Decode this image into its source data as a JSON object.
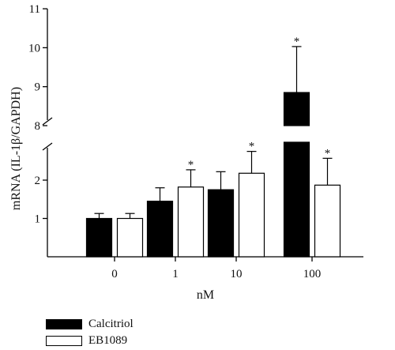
{
  "chart_data": {
    "type": "bar",
    "ylabel": "mRNA (IL-1β/GAPDH)",
    "xlabel": "nM",
    "categories": [
      "0",
      "1",
      "10",
      "100"
    ],
    "broken_axis": true,
    "lower_segment_ylim": [
      0,
      2.8
    ],
    "upper_segment_ylim": [
      8,
      11
    ],
    "lower_ticks": [
      "1",
      "2"
    ],
    "upper_ticks": [
      "8",
      "9",
      "10",
      "11"
    ],
    "significance_mark": "*",
    "series": [
      {
        "name": "Calcitriol",
        "color": "#000000",
        "values": [
          1.0,
          1.45,
          1.75,
          8.85
        ],
        "errors": [
          0.13,
          0.35,
          0.47,
          1.18
        ],
        "significant": [
          false,
          false,
          false,
          true
        ]
      },
      {
        "name": "EB1089",
        "color": "#ffffff",
        "values": [
          1.0,
          1.82,
          2.18,
          1.87
        ],
        "errors": [
          0.13,
          0.45,
          0.57,
          0.7
        ],
        "significant": [
          false,
          true,
          true,
          true
        ]
      }
    ]
  }
}
